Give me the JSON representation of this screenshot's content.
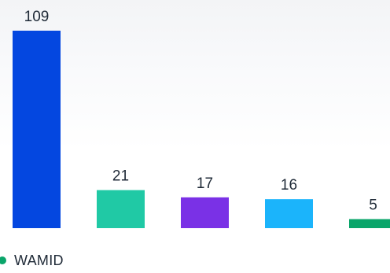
{
  "chart_data": {
    "type": "bar",
    "categories": [
      "",
      "",
      "",
      "",
      ""
    ],
    "values": [
      109,
      21,
      17,
      16,
      5
    ],
    "value_labels": [
      "109",
      "21",
      "17",
      "16",
      "5"
    ],
    "colors": [
      "#0447e0",
      "#20c9a5",
      "#7a31e6",
      "#1bb4fb",
      "#0aa56a"
    ],
    "title": "",
    "xlabel": "",
    "ylabel": "",
    "ylim": [
      0,
      109
    ],
    "grid": false,
    "legend": {
      "placement": "bottom-left",
      "entries": [
        {
          "label": "WAMID",
          "color": "#0aa56a"
        }
      ]
    }
  }
}
